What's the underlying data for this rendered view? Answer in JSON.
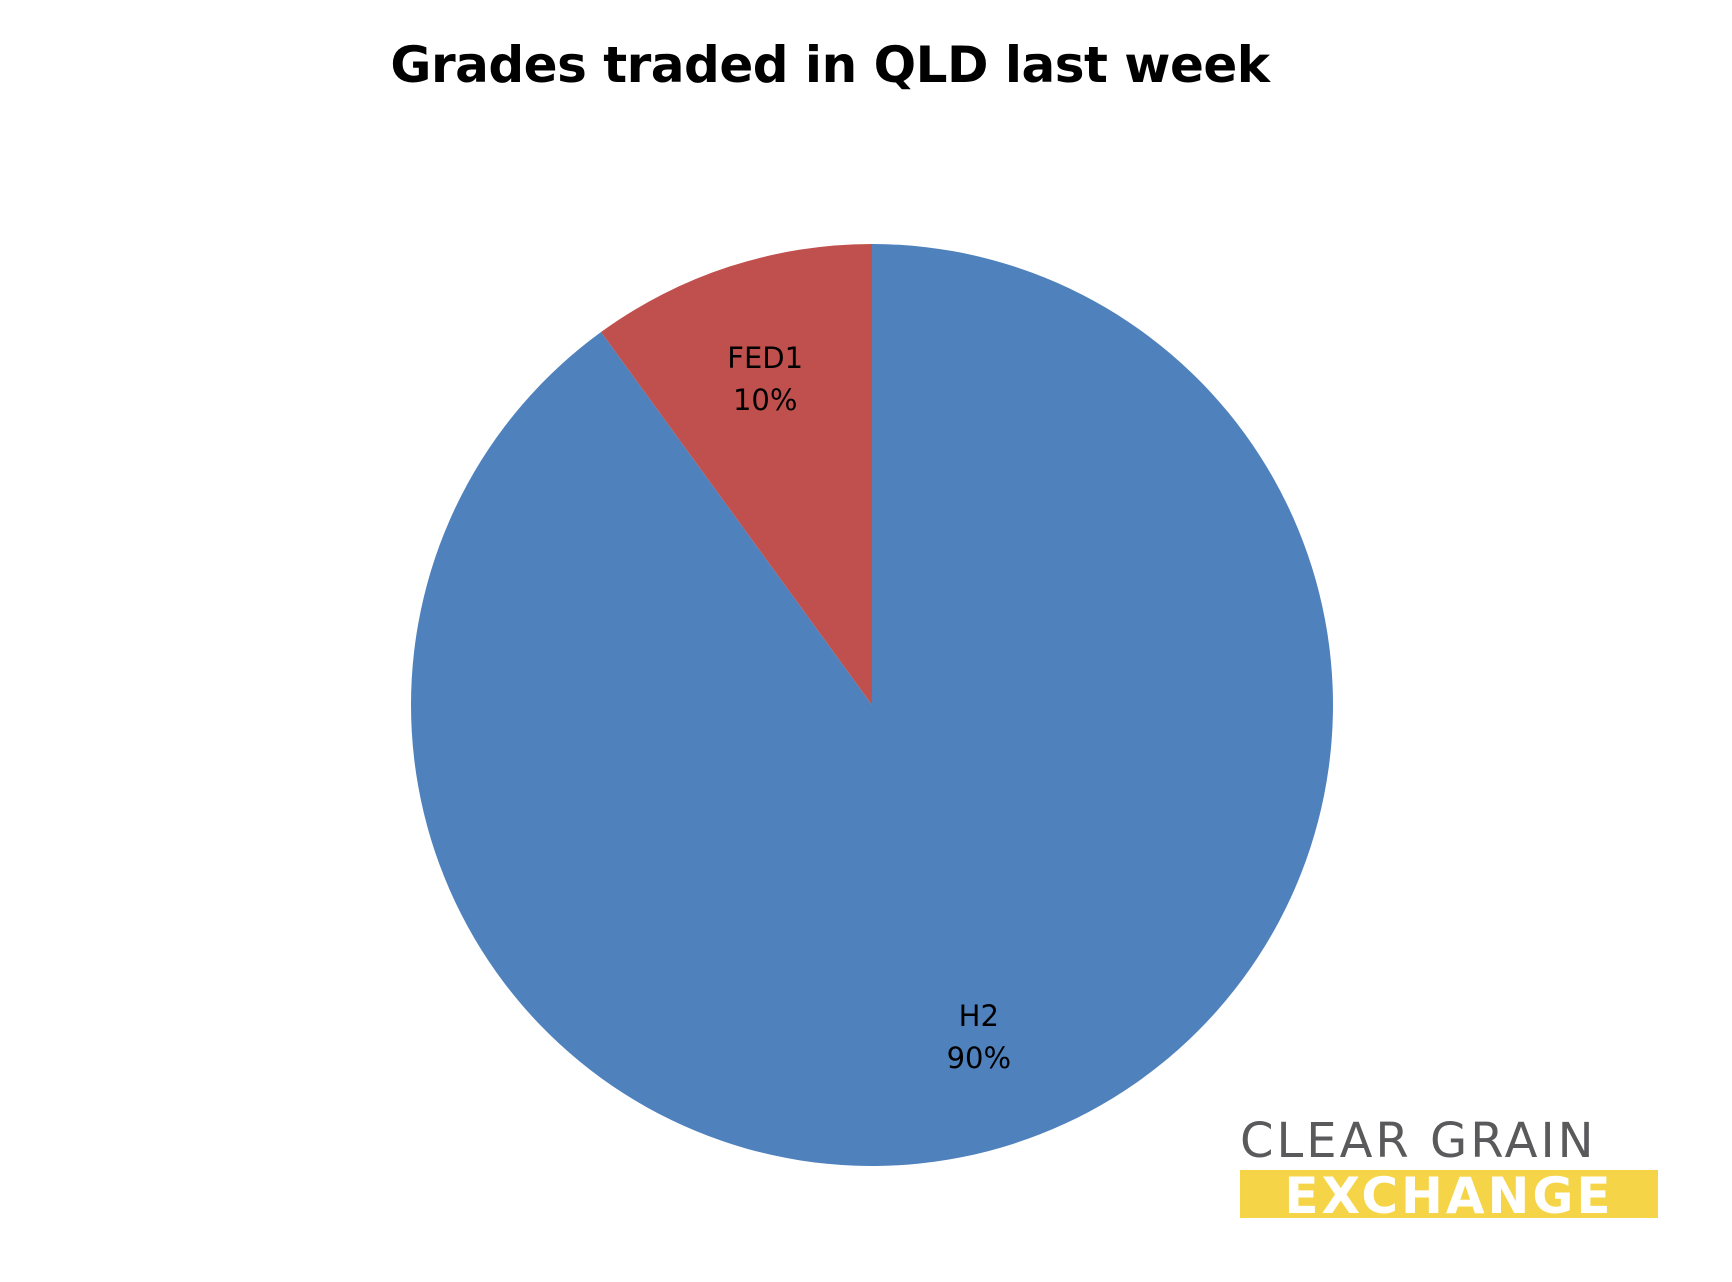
{
  "chart_data": {
    "type": "pie",
    "title": "Grades traded in QLD last week",
    "slices": [
      {
        "name": "H2",
        "value": 90,
        "label": "90%",
        "color": "#4f81bd"
      },
      {
        "name": "FED1",
        "value": 10,
        "label": "10%",
        "color": "#c0504d"
      }
    ],
    "start_angle_deg": 0,
    "direction": "clockwise",
    "legend": "none"
  },
  "logo": {
    "line1": "CLEAR GRAIN",
    "line2": "EXCHANGE",
    "text_color": "#5a5a5c",
    "band_color": "#f5d547"
  }
}
